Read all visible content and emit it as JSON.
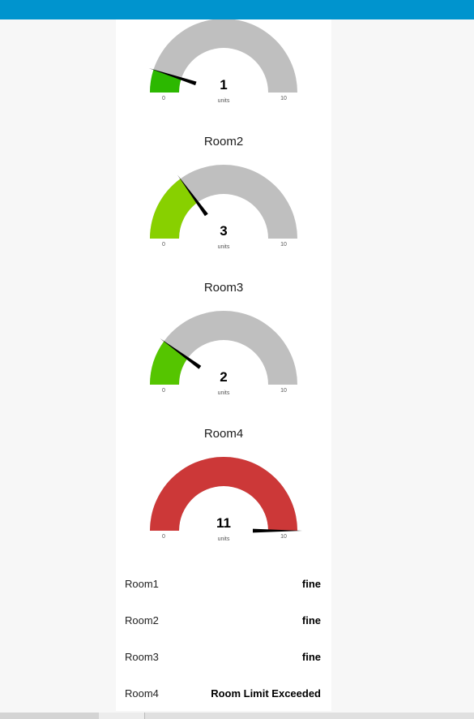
{
  "header": {
    "color": "#0094ce"
  },
  "gauges": [
    {
      "title": "",
      "value": "1",
      "units": "units",
      "min": "0",
      "max": "10",
      "reading": 1,
      "color": "#2cb800"
    },
    {
      "title": "Room2",
      "value": "3",
      "units": "units",
      "min": "0",
      "max": "10",
      "reading": 3,
      "color": "#88d000"
    },
    {
      "title": "Room3",
      "value": "2",
      "units": "units",
      "min": "0",
      "max": "10",
      "reading": 2,
      "color": "#55c500"
    },
    {
      "title": "Room4",
      "value": "11",
      "units": "units",
      "min": "0",
      "max": "10",
      "reading": 11,
      "color": "#cc3838"
    }
  ],
  "gauge_track_color": "#bfbfbf",
  "status": [
    {
      "label": "Room1",
      "value": "fine"
    },
    {
      "label": "Room2",
      "value": "fine"
    },
    {
      "label": "Room3",
      "value": "fine"
    },
    {
      "label": "Room4",
      "value": "Room Limit Exceeded"
    }
  ]
}
